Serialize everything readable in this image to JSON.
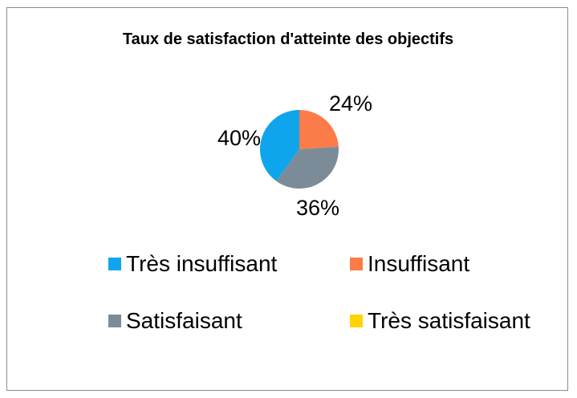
{
  "chart_data": {
    "type": "pie",
    "title": "Taux de satisfaction d'atteinte des objectifs",
    "legend_position": "bottom",
    "categories": [
      "Très insuffisant",
      "Insuffisant",
      "Satisfaisant",
      "Très satisfaisant"
    ],
    "values": [
      40,
      24,
      36,
      0
    ],
    "data_labels": [
      "40%",
      "24%",
      "36%",
      ""
    ],
    "colors": [
      "#0ea5ec",
      "#fb7c48",
      "#7b8c98",
      "#ffd400"
    ]
  }
}
